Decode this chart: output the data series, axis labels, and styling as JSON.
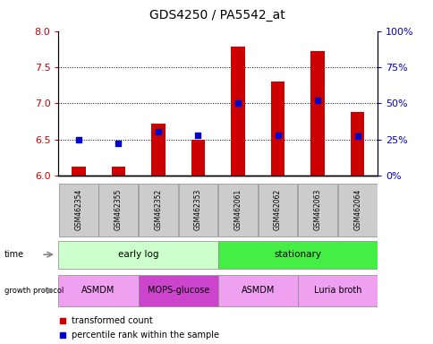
{
  "title": "GDS4250 / PA5542_at",
  "samples": [
    "GSM462354",
    "GSM462355",
    "GSM462352",
    "GSM462353",
    "GSM462061",
    "GSM462062",
    "GSM462063",
    "GSM462064"
  ],
  "transformed_counts": [
    6.12,
    6.12,
    6.72,
    6.49,
    7.78,
    7.3,
    7.72,
    6.88
  ],
  "percentile_ranks": [
    25,
    22,
    30,
    28,
    50,
    28,
    52,
    27
  ],
  "ylim_left": [
    6.0,
    8.0
  ],
  "ylim_right": [
    0,
    100
  ],
  "yticks_left": [
    6.0,
    6.5,
    7.0,
    7.5,
    8.0
  ],
  "yticks_right": [
    0,
    25,
    50,
    75,
    100
  ],
  "ytick_labels_right": [
    "0%",
    "25%",
    "50%",
    "75%",
    "100%"
  ],
  "bar_color": "#cc0000",
  "dot_color": "#0000cc",
  "bar_bottom": 6.0,
  "bar_width": 0.35,
  "time_groups": [
    {
      "label": "early log",
      "start": 0,
      "end": 4,
      "color": "#ccffcc"
    },
    {
      "label": "stationary",
      "start": 4,
      "end": 8,
      "color": "#44ee44"
    }
  ],
  "protocol_groups": [
    {
      "label": "ASMDM",
      "start": 0,
      "end": 2,
      "color": "#f0a0f0"
    },
    {
      "label": "MOPS-glucose",
      "start": 2,
      "end": 4,
      "color": "#cc44cc"
    },
    {
      "label": "ASMDM",
      "start": 4,
      "end": 6,
      "color": "#f0a0f0"
    },
    {
      "label": "Luria broth",
      "start": 6,
      "end": 8,
      "color": "#f0a0f0"
    }
  ],
  "sample_box_color": "#cccccc",
  "grid_lines": [
    6.5,
    7.0,
    7.5
  ],
  "dot_size": 20
}
